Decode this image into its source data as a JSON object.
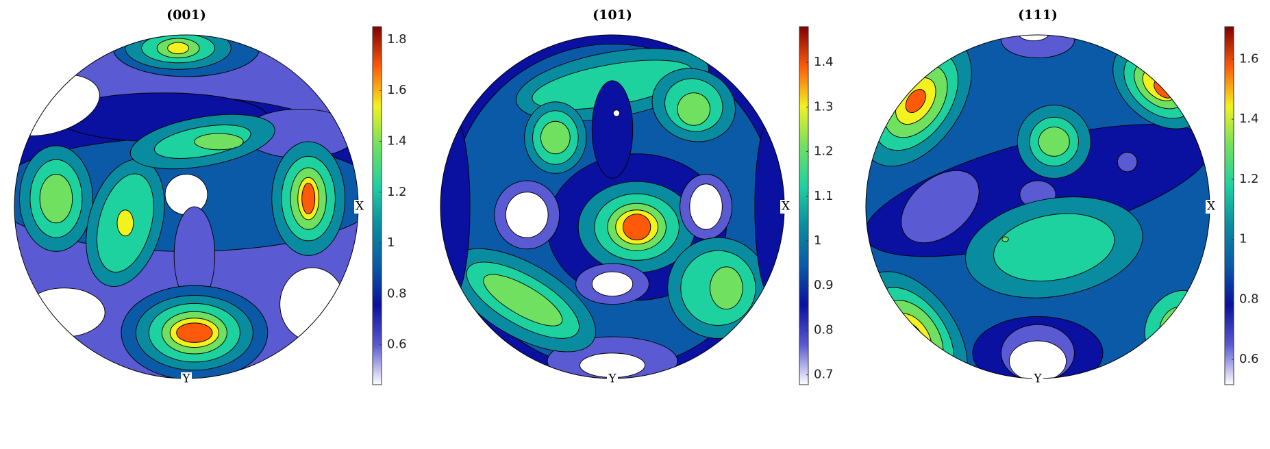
{
  "chart_data": [
    {
      "type": "pole-figure",
      "title": "(001)",
      "x_label": "X",
      "y_label": "Y",
      "clim": [
        0.443,
        1.851
      ],
      "cticks": [
        0.6,
        0.8,
        1,
        1.2,
        1.4,
        1.6,
        1.8
      ],
      "colormap": [
        "#ffffff",
        "#5a5ad2",
        "#0a10a0",
        "#0a5aa8",
        "#0a8ca0",
        "#1ed2a0",
        "#70e060",
        "#f2f21e",
        "#ff5a0a",
        "#800000"
      ]
    },
    {
      "type": "pole-figure",
      "title": "(101)",
      "x_label": "X",
      "y_label": "Y",
      "clim": [
        0.678,
        1.48
      ],
      "cticks": [
        0.7,
        0.8,
        0.9,
        1,
        1.1,
        1.2,
        1.3,
        1.4
      ],
      "colormap": [
        "#ffffff",
        "#5a5ad2",
        "#0a10a0",
        "#0a5aa8",
        "#0a8ca0",
        "#1ed2a0",
        "#70e060",
        "#f2f21e",
        "#ff5a0a",
        "#800000"
      ]
    },
    {
      "type": "pole-figure",
      "title": "(111)",
      "x_label": "X",
      "y_label": "Y",
      "clim": [
        0.516,
        1.708
      ],
      "cticks": [
        0.6,
        0.8,
        1,
        1.2,
        1.4,
        1.6
      ],
      "colormap": [
        "#ffffff",
        "#5a5ad2",
        "#0a10a0",
        "#0a5aa8",
        "#0a8ca0",
        "#1ed2a0",
        "#70e060",
        "#f2f21e",
        "#ff5a0a",
        "#800000"
      ]
    }
  ]
}
